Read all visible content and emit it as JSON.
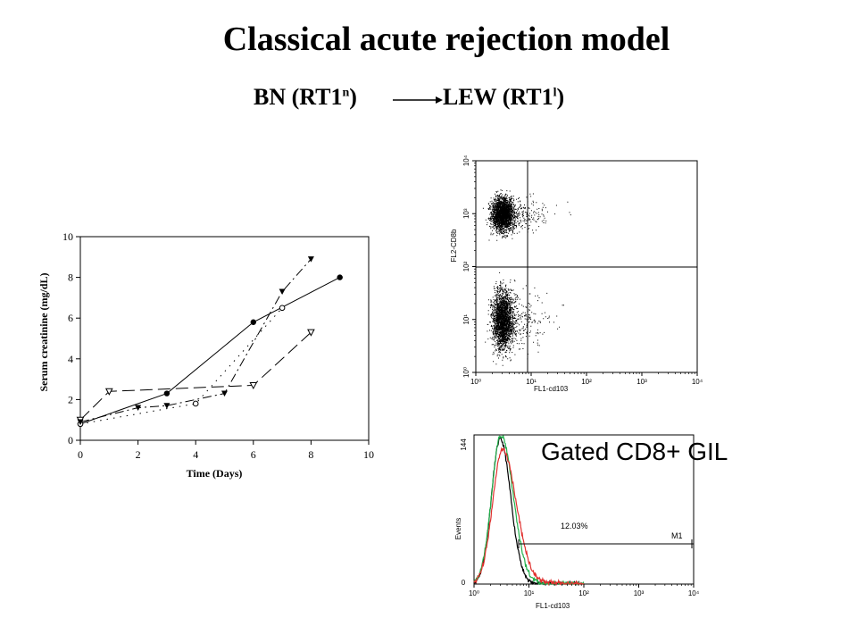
{
  "slide": {
    "title": "Classical acute rejection model",
    "donor": "BN (RT1",
    "donor_sup": "n",
    "recipient": "LEW (RT1",
    "recipient_sup": "l",
    "gated_label": "Gated CD8+ GIL",
    "colors": {
      "text": "#000000",
      "hist_red": "#e0312f",
      "hist_green": "#22b14c",
      "hist_black": "#000000"
    }
  },
  "chart_data": [
    {
      "type": "line",
      "title": "",
      "xlabel": "Time (Days)",
      "ylabel": "Serum creatinine (mg/dL)",
      "xlim": [
        0,
        10
      ],
      "ylim": [
        0,
        10
      ],
      "xticks": [
        "0",
        "2",
        "4",
        "6",
        "8",
        "10"
      ],
      "yticks": [
        "0",
        "2",
        "4",
        "6",
        "8",
        "10"
      ],
      "legend": "none",
      "grid": false,
      "series": [
        {
          "marker": "filled-circle",
          "line": "solid",
          "x": [
            0,
            3,
            6,
            9
          ],
          "y": [
            0.8,
            2.3,
            5.8,
            8.0
          ]
        },
        {
          "marker": "open-circle",
          "line": "dotted",
          "x": [
            0,
            4,
            7
          ],
          "y": [
            0.8,
            1.8,
            6.5
          ]
        },
        {
          "marker": "open-triangle-down",
          "line": "long-dash",
          "x": [
            0,
            1,
            6,
            8
          ],
          "y": [
            1.0,
            2.4,
            2.7,
            5.3
          ]
        },
        {
          "marker": "filled-triangle-down",
          "line": "dash-dot",
          "x": [
            0,
            2,
            3,
            5,
            7,
            8
          ],
          "y": [
            0.9,
            1.6,
            1.7,
            2.3,
            7.3,
            8.9
          ]
        }
      ]
    },
    {
      "type": "scatter",
      "subtype": "flow-cytometry-dot-plot",
      "xlabel": "FL1-cd103",
      "ylabel": "FL2-CD8b",
      "xscale": "log",
      "yscale": "log",
      "xlim": [
        1,
        10000
      ],
      "ylim": [
        1,
        10000
      ],
      "xticks": [
        "10⁰",
        "10¹",
        "10²",
        "10³",
        "10⁴"
      ],
      "yticks": [
        "10⁰",
        "10¹",
        "10²",
        "10³",
        "10⁴"
      ],
      "gate": {
        "x": 10,
        "y": 100
      },
      "populations": [
        {
          "x_center": 3,
          "y_center": 1000,
          "note": "upper cluster"
        },
        {
          "x_center": 3,
          "y_center": 10,
          "note": "lower cluster"
        }
      ]
    },
    {
      "type": "line",
      "subtype": "flow-cytometry-histogram",
      "xlabel": "FL1-cd103",
      "ylabel": "Events",
      "xscale": "log",
      "xlim": [
        1,
        10000
      ],
      "ylim": [
        0,
        144
      ],
      "xticks": [
        "10⁰",
        "10¹",
        "10²",
        "10³",
        "10⁴"
      ],
      "yticks": [
        "0",
        "144"
      ],
      "marker_region": {
        "name": "M1",
        "percent": "12.03%",
        "from": 10,
        "to": 10000
      },
      "series": [
        {
          "color": "black",
          "peak_x": 3,
          "peak_y": 140
        },
        {
          "color": "green",
          "peak_x": 3.1,
          "peak_y": 144
        },
        {
          "color": "red",
          "peak_x": 3.3,
          "peak_y": 130
        }
      ]
    }
  ]
}
